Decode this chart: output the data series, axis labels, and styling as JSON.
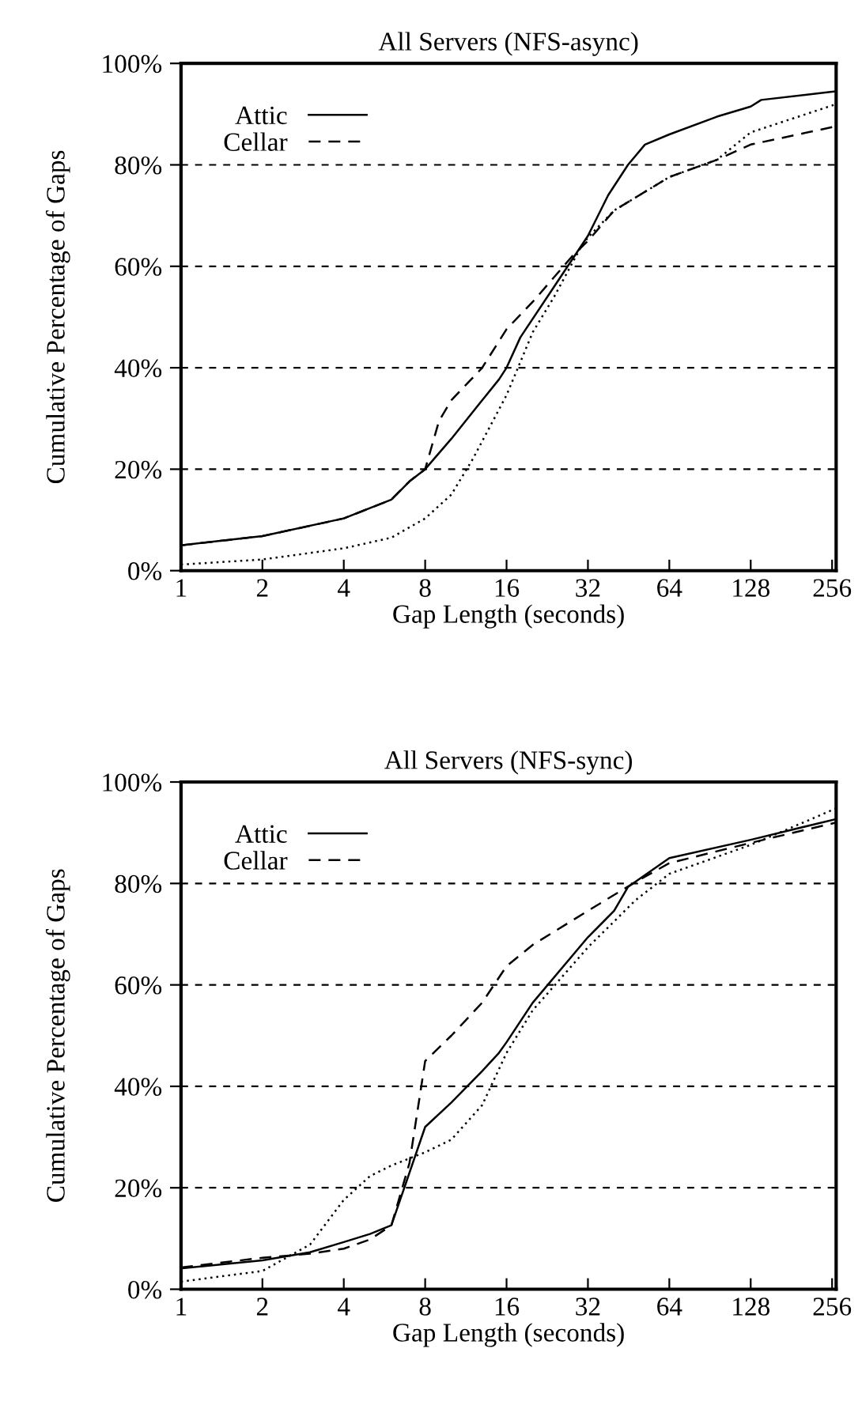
{
  "chart_data": [
    {
      "type": "line",
      "title": "All Servers (NFS-async)",
      "xlabel": "Gap Length (seconds)",
      "ylabel": "Cumulative Percentage of Gaps",
      "log": "x",
      "xlim": [
        1,
        265
      ],
      "xticks": [
        1,
        2,
        4,
        8,
        16,
        32,
        64,
        128,
        256
      ],
      "ylim": [
        0,
        100
      ],
      "yticks": [
        {
          "value": 0,
          "label": "0%"
        },
        {
          "value": 20,
          "label": "20%"
        },
        {
          "value": 40,
          "label": "40%"
        },
        {
          "value": 60,
          "label": "60%"
        },
        {
          "value": 80,
          "label": "80%"
        },
        {
          "value": 100,
          "label": "100%"
        }
      ],
      "grid": "y",
      "legend": "top left",
      "series": [
        {
          "name": "Attic",
          "color": "#000000",
          "line_style": "solid",
          "x": [
            1,
            2,
            4,
            6,
            7,
            8,
            10,
            13,
            15,
            16,
            18,
            24,
            32,
            38,
            45,
            52,
            64,
            96,
            128,
            140,
            256,
            265
          ],
          "values": [
            5,
            6.8,
            10.3,
            14,
            17.6,
            20,
            26,
            33.6,
            37.7,
            40,
            46,
            56,
            66,
            74,
            80,
            84,
            86,
            89.5,
            91.5,
            92.8,
            94.4,
            94.5
          ]
        },
        {
          "name": "Cellar",
          "color": "#000000",
          "line_style": "dashed",
          "x": [
            1,
            2,
            4,
            6,
            7,
            8,
            9,
            10,
            13,
            16,
            20,
            28,
            32,
            40,
            64,
            96,
            128,
            265
          ],
          "values": [
            5,
            6.8,
            10.3,
            14,
            17.6,
            20,
            29.5,
            33.6,
            40,
            47.6,
            53,
            62,
            65,
            71,
            77.6,
            81,
            84,
            87.6
          ]
        },
        {
          "color": "#000000",
          "line_style": "dotted",
          "x": [
            1,
            2,
            4,
            6,
            8,
            10,
            12,
            16,
            20,
            24,
            30,
            32,
            40,
            64,
            96,
            128,
            256,
            265
          ],
          "values": [
            1.2,
            2.2,
            4.4,
            6.5,
            10.3,
            15,
            22,
            34.6,
            47,
            54,
            63.6,
            65.7,
            71,
            77.6,
            81,
            86.4,
            91.7,
            92
          ]
        }
      ]
    },
    {
      "type": "line",
      "title": "All Servers (NFS-sync)",
      "xlabel": "Gap Length (seconds)",
      "ylabel": "Cumulative Percentage of Gaps",
      "log": "x",
      "xlim": [
        1,
        265
      ],
      "xticks": [
        1,
        2,
        4,
        8,
        16,
        32,
        64,
        128,
        256
      ],
      "ylim": [
        0,
        100
      ],
      "yticks": [
        {
          "value": 0,
          "label": "0%"
        },
        {
          "value": 20,
          "label": "20%"
        },
        {
          "value": 40,
          "label": "40%"
        },
        {
          "value": 60,
          "label": "60%"
        },
        {
          "value": 80,
          "label": "80%"
        },
        {
          "value": 100,
          "label": "100%"
        }
      ],
      "grid": "y",
      "legend": "top left",
      "series": [
        {
          "name": "Attic",
          "color": "#000000",
          "line_style": "solid",
          "x": [
            1,
            2,
            3,
            4,
            5,
            6,
            8,
            10,
            13,
            15,
            16,
            20,
            32,
            40,
            45,
            64,
            128,
            265
          ],
          "values": [
            4.1,
            5.7,
            7.3,
            9.3,
            10.9,
            12.6,
            32,
            36.8,
            43,
            46.6,
            48.7,
            56.5,
            69.4,
            74.6,
            79.3,
            85,
            88.6,
            92.7
          ]
        },
        {
          "name": "Cellar",
          "color": "#000000",
          "line_style": "dashed",
          "x": [
            1,
            2,
            3,
            4,
            5,
            6,
            7,
            8,
            10,
            13,
            16,
            20,
            32,
            48,
            64,
            128,
            265
          ],
          "values": [
            4.3,
            6.2,
            7,
            8,
            9.8,
            12.6,
            24.9,
            45,
            50,
            56.5,
            63.7,
            67.9,
            74.6,
            80.3,
            84,
            88,
            92
          ]
        },
        {
          "color": "#000000",
          "line_style": "dotted",
          "x": [
            1,
            2,
            3,
            4,
            5,
            6,
            8,
            10,
            13,
            16,
            20,
            32,
            48,
            64,
            128,
            200,
            265
          ],
          "values": [
            1.5,
            3.6,
            8.8,
            17.6,
            22.3,
            24.4,
            27,
            29.5,
            36.3,
            46.6,
            55,
            67.4,
            76.7,
            81.9,
            87.6,
            92,
            94.8
          ]
        }
      ]
    }
  ]
}
